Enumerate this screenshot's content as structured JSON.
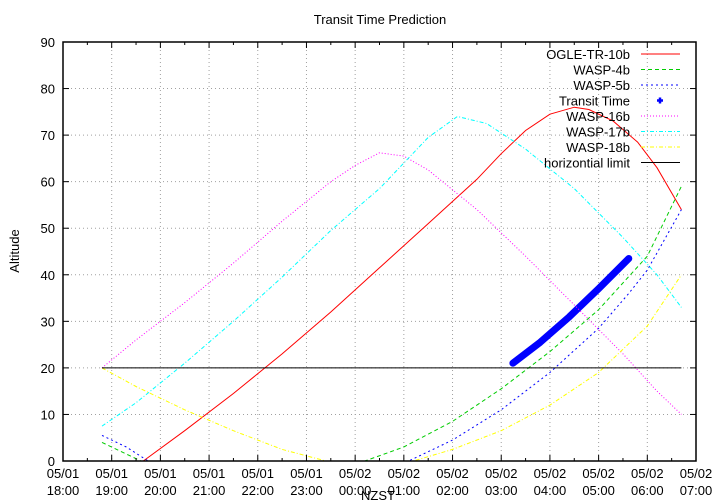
{
  "chart_data": {
    "type": "line",
    "title": "Transit Time Prediction",
    "xlabel": "NZST",
    "ylabel": "Altitude",
    "ylim": [
      0,
      90
    ],
    "yticks": [
      0,
      10,
      20,
      30,
      40,
      50,
      60,
      70,
      80,
      90
    ],
    "xlim_hours_from_0501_1800": [
      0,
      13
    ],
    "xticks": [
      {
        "date": "05/01",
        "time": "18:00"
      },
      {
        "date": "05/01",
        "time": "19:00"
      },
      {
        "date": "05/01",
        "time": "20:00"
      },
      {
        "date": "05/01",
        "time": "21:00"
      },
      {
        "date": "05/01",
        "time": "22:00"
      },
      {
        "date": "05/01",
        "time": "23:00"
      },
      {
        "date": "05/02",
        "time": "00:00"
      },
      {
        "date": "05/02",
        "time": "01:00"
      },
      {
        "date": "05/02",
        "time": "02:00"
      },
      {
        "date": "05/02",
        "time": "03:00"
      },
      {
        "date": "05/02",
        "time": "04:00"
      },
      {
        "date": "05/02",
        "time": "05:00"
      },
      {
        "date": "05/02",
        "time": "06:00"
      },
      {
        "date": "05/02",
        "time": "07:00"
      }
    ],
    "grid": true,
    "legend_position": "top-right",
    "series": [
      {
        "name": "OGLE-TR-10b",
        "color": "#ff0000",
        "dash": "",
        "points": [
          [
            1.65,
            0
          ],
          [
            2.5,
            6.5
          ],
          [
            3.5,
            14.5
          ],
          [
            4.5,
            23
          ],
          [
            5.5,
            32
          ],
          [
            6.5,
            41.5
          ],
          [
            7.5,
            51
          ],
          [
            8.5,
            60.5
          ],
          [
            9.0,
            66
          ],
          [
            9.5,
            71
          ],
          [
            10.0,
            74.5
          ],
          [
            10.5,
            76
          ],
          [
            10.8,
            75.5
          ],
          [
            11.3,
            73
          ],
          [
            11.8,
            68.5
          ],
          [
            12.2,
            63
          ],
          [
            12.7,
            54
          ]
        ]
      },
      {
        "name": "WASP-4b",
        "color": "#00cc00",
        "dash": "4,3",
        "points": [
          [
            0.8,
            4
          ],
          [
            1.2,
            2
          ],
          [
            1.6,
            0
          ],
          [
            6.2,
            0
          ],
          [
            7.0,
            3
          ],
          [
            8.0,
            8.5
          ],
          [
            9.0,
            15.5
          ],
          [
            10.0,
            23.5
          ],
          [
            11.0,
            32.5
          ],
          [
            12.0,
            44
          ],
          [
            12.7,
            59
          ]
        ]
      },
      {
        "name": "WASP-5b",
        "color": "#0000ff",
        "dash": "2,3",
        "points": [
          [
            0.8,
            5.5
          ],
          [
            1.3,
            3
          ],
          [
            1.75,
            0
          ],
          [
            7.1,
            0
          ],
          [
            8.0,
            4.5
          ],
          [
            9.0,
            11
          ],
          [
            10.0,
            19
          ],
          [
            11.0,
            28.5
          ],
          [
            11.62,
            36
          ],
          [
            12.0,
            41
          ],
          [
            12.7,
            54
          ]
        ]
      },
      {
        "name": "Transit Time",
        "color": "#0000ff",
        "marker": "plus",
        "points": [
          [
            9.24,
            21
          ],
          [
            9.8,
            25.5
          ],
          [
            10.4,
            31
          ],
          [
            11.0,
            37
          ],
          [
            11.62,
            43.5
          ]
        ]
      },
      {
        "name": "WASP-16b",
        "color": "#ff00ff",
        "dash": "1,2",
        "points": [
          [
            0.8,
            20
          ],
          [
            1.5,
            26
          ],
          [
            2.5,
            34
          ],
          [
            3.5,
            42.5
          ],
          [
            4.5,
            51.5
          ],
          [
            5.5,
            60
          ],
          [
            6.0,
            63.5
          ],
          [
            6.5,
            66.2
          ],
          [
            7.0,
            65.5
          ],
          [
            7.5,
            62.5
          ],
          [
            8.5,
            54
          ],
          [
            9.5,
            44
          ],
          [
            10.5,
            33.5
          ],
          [
            11.5,
            23
          ],
          [
            12.2,
            15
          ],
          [
            12.7,
            10
          ]
        ]
      },
      {
        "name": "WASP-17b",
        "color": "#00ffff",
        "dash": "4,2,1,2",
        "points": [
          [
            0.8,
            7.5
          ],
          [
            1.5,
            12.5
          ],
          [
            2.5,
            21
          ],
          [
            3.5,
            30
          ],
          [
            4.5,
            39.5
          ],
          [
            5.5,
            49.5
          ],
          [
            6.5,
            58.5
          ],
          [
            7.5,
            69.5
          ],
          [
            8.1,
            74
          ],
          [
            8.7,
            72.5
          ],
          [
            9.5,
            67
          ],
          [
            10.5,
            58.5
          ],
          [
            11.5,
            48
          ],
          [
            12.2,
            40
          ],
          [
            12.7,
            33
          ]
        ]
      },
      {
        "name": "WASP-18b",
        "color": "#ffff00",
        "dash": "4,2,1,2",
        "points": [
          [
            0.8,
            20
          ],
          [
            1.5,
            16
          ],
          [
            2.5,
            11
          ],
          [
            3.5,
            6.5
          ],
          [
            4.5,
            2.5
          ],
          [
            5.4,
            0
          ],
          [
            7.2,
            0
          ],
          [
            8.0,
            2.5
          ],
          [
            9.0,
            6.5
          ],
          [
            10.0,
            12
          ],
          [
            11.0,
            19
          ],
          [
            12.0,
            29
          ],
          [
            12.7,
            40
          ]
        ]
      },
      {
        "name": "horizontial limit",
        "color": "#000000",
        "dash": "",
        "points": [
          [
            0.8,
            20
          ],
          [
            12.7,
            20
          ]
        ]
      }
    ]
  }
}
